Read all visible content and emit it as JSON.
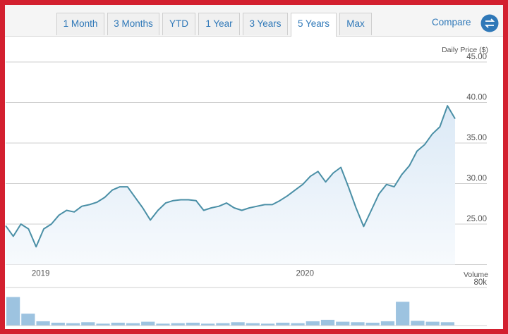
{
  "tabs": [
    "1 Month",
    "3 Months",
    "YTD",
    "1 Year",
    "3 Years",
    "5 Years",
    "Max"
  ],
  "active_tab": 5,
  "compare": "Compare",
  "chart_data": [
    {
      "type": "line",
      "y_label": "Daily Price ($)",
      "color": "#4a8fa6",
      "xlim": [
        0,
        59
      ],
      "xticks": [
        {
          "value": 4.6,
          "label": "2019"
        },
        {
          "value": 39.3,
          "label": "2020"
        }
      ],
      "ylim": [
        20,
        45
      ],
      "yticks": [
        {
          "value": 25,
          "label": "25.00"
        },
        {
          "value": 30,
          "label": "30.00"
        },
        {
          "value": 35,
          "label": "35.00"
        },
        {
          "value": 40,
          "label": "40.00"
        },
        {
          "value": 45,
          "label": "45.00"
        }
      ],
      "grid": true,
      "values": [
        24.8,
        23.5,
        25.0,
        24.4,
        22.2,
        24.4,
        25.0,
        26.1,
        26.7,
        26.5,
        27.2,
        27.4,
        27.7,
        28.3,
        29.2,
        29.6,
        29.6,
        28.3,
        27.0,
        25.5,
        26.7,
        27.6,
        27.9,
        28.0,
        28.0,
        27.9,
        26.7,
        27.0,
        27.2,
        27.6,
        27.0,
        26.7,
        27.0,
        27.2,
        27.4,
        27.4,
        27.9,
        28.5,
        29.2,
        29.9,
        30.9,
        31.5,
        30.2,
        31.3,
        32.0,
        29.6,
        27.0,
        24.7,
        26.7,
        28.7,
        29.9,
        29.6,
        31.1,
        32.2,
        34.0,
        34.8,
        36.1,
        37.0,
        39.6,
        38.0
      ]
    },
    {
      "type": "bar",
      "y_label": "Volume",
      "color": "#9dc3e0",
      "ylim": [
        0,
        80000
      ],
      "yticks": [
        {
          "value": 80000,
          "label": "80k"
        }
      ],
      "grid": true,
      "values": [
        60000,
        25000,
        9000,
        6000,
        5000,
        7000,
        4000,
        6000,
        5000,
        8000,
        4000,
        5000,
        6000,
        4000,
        5000,
        7000,
        5000,
        4000,
        6000,
        5000,
        9000,
        12000,
        8000,
        7000,
        6000,
        9000,
        50000,
        10000,
        8000,
        7000
      ]
    }
  ]
}
